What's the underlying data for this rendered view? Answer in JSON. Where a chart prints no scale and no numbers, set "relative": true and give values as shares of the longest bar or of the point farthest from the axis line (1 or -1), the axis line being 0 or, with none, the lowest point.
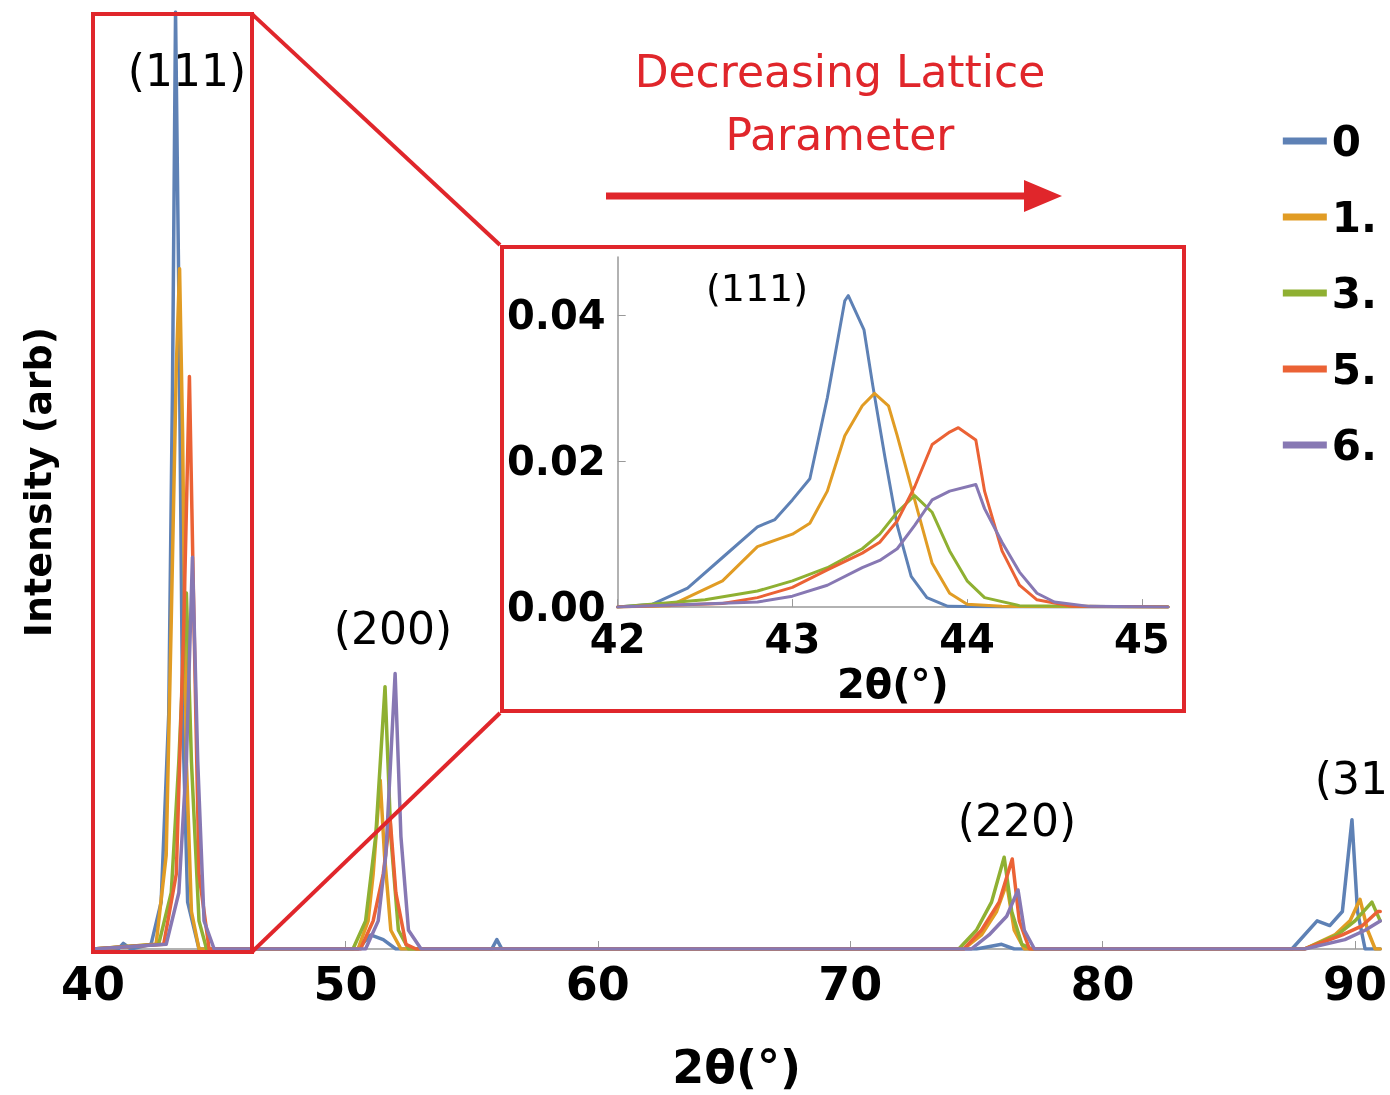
{
  "chart_data": [
    {
      "type": "line",
      "xlabel": "2θ(°)",
      "ylabel": "Intensity (arb)",
      "relative": true,
      "xlim": [
        40,
        91
      ],
      "xticks": [
        40,
        50,
        60,
        70,
        80,
        90
      ],
      "tick_labels": "x",
      "legend": "top right",
      "grid": false,
      "annotations": [
        "Decreasing Lattice Parameter",
        "(111)",
        "(200)",
        "(220)",
        "(31"
      ],
      "series": [
        {
          "name": "0",
          "color": "#5e81b5",
          "x": [
            40,
            41,
            41.2,
            41.5,
            42.3,
            42.7,
            43.0,
            43.15,
            43.27,
            43.4,
            43.55,
            43.75,
            44.2,
            50.5,
            51.0,
            51.5,
            52.0,
            55.8,
            56.0,
            56.2,
            75,
            76.0,
            76.5,
            87.5,
            88.5,
            89.0,
            89.5,
            89.88,
            90.1,
            90.4,
            91
          ],
          "values": [
            0,
            0,
            0.006,
            0,
            0.005,
            0.05,
            0.25,
            0.6,
            1,
            0.7,
            0.25,
            0.05,
            0,
            0,
            0.015,
            0.01,
            0,
            0,
            0.01,
            0,
            0,
            0.005,
            0,
            0,
            0.03,
            0.025,
            0.04,
            0.138,
            0.04,
            0,
            0
          ]
        },
        {
          "name": "1.",
          "color": "#e19c24",
          "x": [
            40,
            42.5,
            42.9,
            43.1,
            43.3,
            43.43,
            43.55,
            43.7,
            43.9,
            44.2,
            50.5,
            50.9,
            51.1,
            51.38,
            51.55,
            51.8,
            52.2,
            74.5,
            75.2,
            75.8,
            76.2,
            76.5,
            76.9,
            88,
            89.2,
            89.8,
            90.2,
            90.5,
            90.8,
            91
          ],
          "values": [
            0,
            0.005,
            0.1,
            0.35,
            0.62,
            0.726,
            0.55,
            0.2,
            0.04,
            0,
            0,
            0.03,
            0.08,
            0.18,
            0.1,
            0.02,
            0,
            0,
            0.015,
            0.04,
            0.07,
            0.02,
            0,
            0,
            0.015,
            0.03,
            0.053,
            0.02,
            0,
            0
          ]
        },
        {
          "name": "3.",
          "color": "#8fb032",
          "x": [
            40,
            42.6,
            43.1,
            43.4,
            43.7,
            43.9,
            44.2,
            44.5,
            50.3,
            50.8,
            51.2,
            51.57,
            51.8,
            52.1,
            52.5,
            74.3,
            75.0,
            75.6,
            76.1,
            76.4,
            76.8,
            77.2,
            88,
            89.3,
            90.0,
            90.67,
            91
          ],
          "values": [
            0,
            0.005,
            0.06,
            0.2,
            0.38,
            0.2,
            0.03,
            0,
            0,
            0.03,
            0.12,
            0.28,
            0.12,
            0.02,
            0,
            0,
            0.02,
            0.05,
            0.098,
            0.04,
            0.005,
            0,
            0,
            0.015,
            0.03,
            0.05,
            0.03
          ]
        },
        {
          "name": "5.",
          "color": "#eb6235",
          "x": [
            40,
            42.8,
            43.3,
            43.6,
            43.82,
            44.0,
            44.2,
            44.6,
            50.6,
            51.1,
            51.5,
            51.77,
            52.0,
            52.4,
            52.8,
            74.5,
            75.2,
            75.9,
            76.42,
            76.7,
            77.1,
            88,
            89.5,
            90.3,
            90.9,
            91
          ],
          "values": [
            0,
            0.005,
            0.08,
            0.35,
            0.611,
            0.35,
            0.08,
            0,
            0,
            0.03,
            0.08,
            0.14,
            0.06,
            0.005,
            0,
            0,
            0.02,
            0.05,
            0.096,
            0.03,
            0,
            0,
            0.015,
            0.025,
            0.04,
            0.04
          ]
        },
        {
          "name": "6.",
          "color": "#8778b3",
          "x": [
            40,
            42.9,
            43.4,
            43.7,
            43.94,
            44.15,
            44.4,
            44.8,
            50.8,
            51.3,
            51.6,
            51.97,
            52.2,
            52.5,
            53,
            74.8,
            75.5,
            76.2,
            76.65,
            76.9,
            77.3,
            88,
            89.6,
            90.4,
            91
          ],
          "values": [
            0,
            0.005,
            0.06,
            0.2,
            0.418,
            0.2,
            0.03,
            0,
            0,
            0.03,
            0.1,
            0.294,
            0.12,
            0.02,
            0,
            0,
            0.015,
            0.035,
            0.063,
            0.02,
            0,
            0,
            0.01,
            0.02,
            0.03
          ]
        }
      ]
    },
    {
      "type": "line",
      "xlabel": "2θ(°)",
      "xlim": [
        42,
        45.15
      ],
      "xticks": [
        42,
        43,
        44,
        45
      ],
      "ylim": [
        0,
        0.048
      ],
      "yticks": [
        {
          "value": 0,
          "label": "0.00"
        },
        {
          "value": 0.02,
          "label": "0.02"
        },
        {
          "value": 0.04,
          "label": "0.04"
        }
      ],
      "grid": false,
      "annotations": [
        "(111)"
      ],
      "series": [
        {
          "color": "#5e81b5",
          "x": [
            42,
            42.2,
            42.4,
            42.6,
            42.8,
            42.9,
            43.0,
            43.1,
            43.2,
            43.3,
            43.32,
            43.41,
            43.46,
            43.53,
            43.6,
            43.68,
            43.77,
            43.89,
            44.2,
            45.15
          ],
          "values": [
            0,
            0.0004,
            0.0026,
            0.0068,
            0.011,
            0.012,
            0.0147,
            0.0176,
            0.0287,
            0.042,
            0.0427,
            0.038,
            0.0304,
            0.0205,
            0.0112,
            0.0042,
            0.0013,
            0.0001,
            0,
            0
          ]
        },
        {
          "color": "#e19c24",
          "x": [
            42,
            42.3,
            42.6,
            42.8,
            43.0,
            43.1,
            43.2,
            43.3,
            43.4,
            43.47,
            43.55,
            43.6,
            43.7,
            43.8,
            43.9,
            44.0,
            44.2,
            45.15
          ],
          "values": [
            0,
            0.0002,
            0.0036,
            0.0083,
            0.01,
            0.0115,
            0.0159,
            0.0235,
            0.0276,
            0.0293,
            0.0276,
            0.0235,
            0.0147,
            0.006,
            0.0019,
            0.0004,
            0.0001,
            0
          ]
        },
        {
          "color": "#8fb032",
          "x": [
            42,
            42.5,
            42.8,
            43.0,
            43.2,
            43.4,
            43.5,
            43.6,
            43.7,
            43.8,
            43.9,
            44.0,
            44.1,
            44.3,
            45.15
          ],
          "values": [
            0,
            0.001,
            0.0022,
            0.0036,
            0.0054,
            0.008,
            0.01,
            0.013,
            0.0153,
            0.013,
            0.0077,
            0.0036,
            0.0013,
            0.0002,
            0
          ]
        },
        {
          "color": "#eb6235",
          "x": [
            42,
            42.6,
            42.8,
            43.0,
            43.2,
            43.4,
            43.5,
            43.6,
            43.7,
            43.8,
            43.9,
            43.95,
            44.05,
            44.1,
            44.2,
            44.3,
            44.4,
            44.6,
            45.15
          ],
          "values": [
            0,
            0.0005,
            0.0013,
            0.0027,
            0.0051,
            0.0074,
            0.0089,
            0.0118,
            0.0165,
            0.0223,
            0.024,
            0.0246,
            0.0229,
            0.0159,
            0.0077,
            0.003,
            0.001,
            0.0001,
            0
          ]
        },
        {
          "color": "#8778b3",
          "x": [
            42,
            42.8,
            43.0,
            43.2,
            43.4,
            43.5,
            43.6,
            43.7,
            43.8,
            43.9,
            44.05,
            44.1,
            44.2,
            44.3,
            44.4,
            44.5,
            44.7,
            45.15
          ],
          "values": [
            0,
            0.0007,
            0.0015,
            0.003,
            0.0054,
            0.0064,
            0.008,
            0.0112,
            0.0147,
            0.0159,
            0.0168,
            0.0135,
            0.0089,
            0.0048,
            0.0019,
            0.0007,
            0.0001,
            0
          ]
        }
      ]
    }
  ]
}
